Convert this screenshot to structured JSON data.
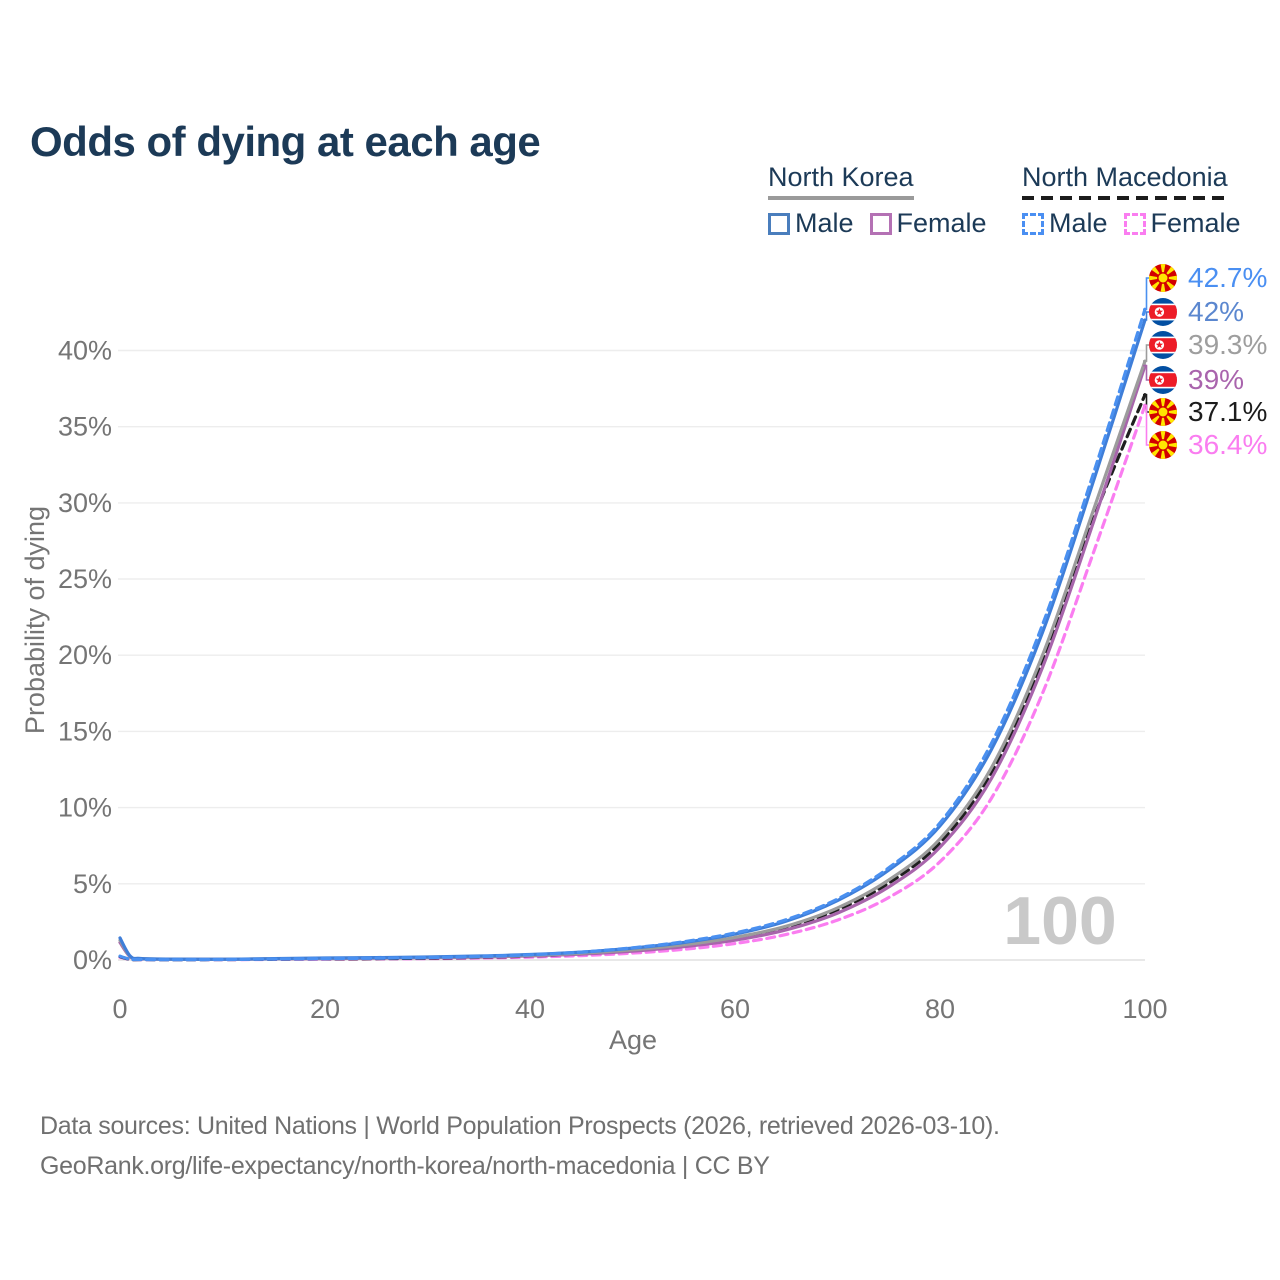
{
  "title": "Odds of dying at each age",
  "legend": {
    "groups": [
      {
        "name": "North Korea",
        "underline_style": "solid",
        "underline_color": "#9a9a9a",
        "items": [
          {
            "label": "Male",
            "color": "#4a7ebd",
            "dashed": false
          },
          {
            "label": "Female",
            "color": "#b471b4",
            "dashed": false
          }
        ]
      },
      {
        "name": "North Macedonia",
        "underline_style": "dashed",
        "underline_color": "#1c1c1c",
        "items": [
          {
            "label": "Male",
            "color": "#4a8ff2",
            "dashed": true
          },
          {
            "label": "Female",
            "color": "#fa7df0",
            "dashed": true
          }
        ]
      }
    ]
  },
  "footer": {
    "line1": "Data sources: United Nations | World Population Prospects (2026, retrieved 2026-03-10).",
    "line2": "GeoRank.org/life-expectancy/north-korea/north-macedonia | CC BY"
  },
  "chart_data": {
    "type": "line",
    "title": "Odds of dying at each age",
    "xlabel": "Age",
    "ylabel": "Probability of dying",
    "xlim": [
      0,
      100
    ],
    "ylim": [
      0,
      44
    ],
    "x_ticks": [
      0,
      20,
      40,
      60,
      80,
      100
    ],
    "y_ticks": [
      0,
      5,
      10,
      15,
      20,
      25,
      30,
      35,
      40
    ],
    "y_tick_suffix": "%",
    "grid": "horizontal",
    "legend_position": "top-right",
    "hovered_age_watermark": "100",
    "ages": [
      0,
      1,
      2,
      5,
      10,
      15,
      20,
      25,
      30,
      35,
      40,
      45,
      50,
      55,
      60,
      65,
      70,
      75,
      80,
      85,
      90,
      95,
      100
    ],
    "series": [
      {
        "name": "North Macedonia Male",
        "flag": "mk",
        "color": "#4a90f0",
        "label_color": "#4a8ff2",
        "dash": true,
        "end_value": 42.7,
        "end_label": "42.7%",
        "values": [
          0.25,
          0.05,
          0.03,
          0.02,
          0.03,
          0.06,
          0.09,
          0.12,
          0.16,
          0.23,
          0.34,
          0.52,
          0.8,
          1.2,
          1.78,
          2.65,
          4.0,
          6.05,
          9.0,
          14.2,
          22.0,
          32.0,
          42.7
        ]
      },
      {
        "name": "North Korea Male",
        "flag": "kp",
        "color": "#3f7ed8",
        "label_color": "#5b87cf",
        "dash": false,
        "end_value": 42.0,
        "end_label": "42%",
        "values": [
          1.45,
          0.25,
          0.1,
          0.06,
          0.05,
          0.09,
          0.13,
          0.16,
          0.2,
          0.26,
          0.36,
          0.52,
          0.78,
          1.15,
          1.7,
          2.55,
          3.9,
          5.9,
          8.8,
          13.8,
          21.5,
          31.5,
          42.0
        ]
      },
      {
        "name": "North Korea Both sexes",
        "flag": "kp",
        "color": "#9c9c9c",
        "label_color": "#9e9e9e",
        "dash": false,
        "end_value": 39.3,
        "end_label": "39.3%",
        "values": [
          1.3,
          0.22,
          0.09,
          0.05,
          0.045,
          0.08,
          0.11,
          0.14,
          0.17,
          0.22,
          0.31,
          0.45,
          0.67,
          1.0,
          1.48,
          2.22,
          3.42,
          5.25,
          7.95,
          12.6,
          20.0,
          29.6,
          39.3
        ]
      },
      {
        "name": "North Korea Female",
        "flag": "kp",
        "color": "#a765ab",
        "label_color": "#a964ad",
        "dash": false,
        "end_value": 39.0,
        "end_label": "39%",
        "values": [
          1.15,
          0.2,
          0.08,
          0.05,
          0.04,
          0.07,
          0.09,
          0.12,
          0.15,
          0.19,
          0.27,
          0.39,
          0.58,
          0.87,
          1.3,
          1.98,
          3.08,
          4.8,
          7.4,
          11.9,
          19.2,
          28.8,
          39.0
        ]
      },
      {
        "name": "North Macedonia Both sexes",
        "flag": "mk",
        "color": "#1f1f1f",
        "label_color": "#1c1c1c",
        "dash": true,
        "end_value": 37.1,
        "end_label": "37.1%",
        "values": [
          0.22,
          0.04,
          0.03,
          0.02,
          0.03,
          0.05,
          0.07,
          0.09,
          0.12,
          0.17,
          0.26,
          0.4,
          0.62,
          0.95,
          1.42,
          2.15,
          3.3,
          5.05,
          7.7,
          12.3,
          19.6,
          29.0,
          37.1
        ]
      },
      {
        "name": "North Macedonia Female",
        "flag": "mk",
        "color": "#fa7df0",
        "label_color": "#fa7df0",
        "dash": true,
        "end_value": 36.4,
        "end_label": "36.4%",
        "values": [
          0.18,
          0.04,
          0.02,
          0.02,
          0.02,
          0.04,
          0.05,
          0.07,
          0.09,
          0.13,
          0.19,
          0.29,
          0.45,
          0.7,
          1.08,
          1.68,
          2.62,
          4.1,
          6.45,
          10.6,
          17.5,
          26.8,
          36.4
        ]
      }
    ]
  }
}
